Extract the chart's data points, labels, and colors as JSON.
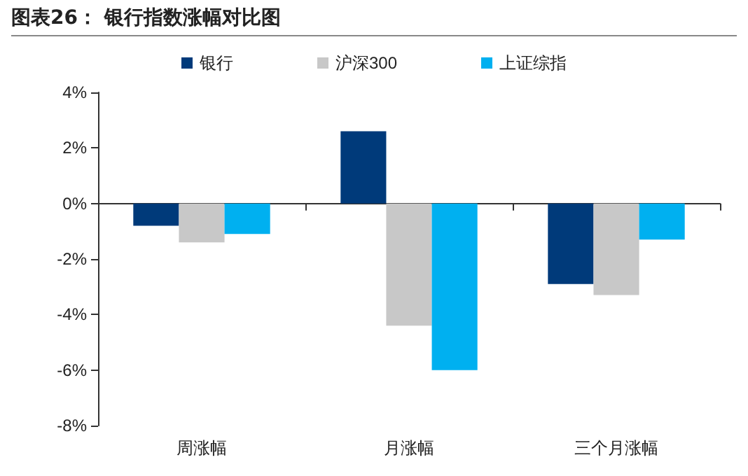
{
  "chart_data": {
    "type": "bar",
    "title": "图表26：  银行指数涨幅对比图",
    "categories": [
      "周涨幅",
      "月涨幅",
      "三个月涨幅"
    ],
    "series": [
      {
        "name": "银行",
        "color": "#003a7a",
        "values": [
          -0.8,
          2.6,
          -2.9
        ]
      },
      {
        "name": "沪深300",
        "color": "#c8c8c8",
        "values": [
          -1.4,
          -4.4,
          -3.3
        ]
      },
      {
        "name": "上证综指",
        "color": "#00b0f0",
        "values": [
          -1.1,
          -6.0,
          -1.3
        ]
      }
    ],
    "ylim": [
      -8,
      4
    ],
    "yticks": [
      {
        "value": -8,
        "label": "-8%"
      },
      {
        "value": -6,
        "label": "-6%"
      },
      {
        "value": -4,
        "label": "-4%"
      },
      {
        "value": -2,
        "label": "-2%"
      },
      {
        "value": 0,
        "label": "0%"
      },
      {
        "value": 2,
        "label": "2%"
      },
      {
        "value": 4,
        "label": "4%"
      }
    ],
    "legend": "top"
  }
}
